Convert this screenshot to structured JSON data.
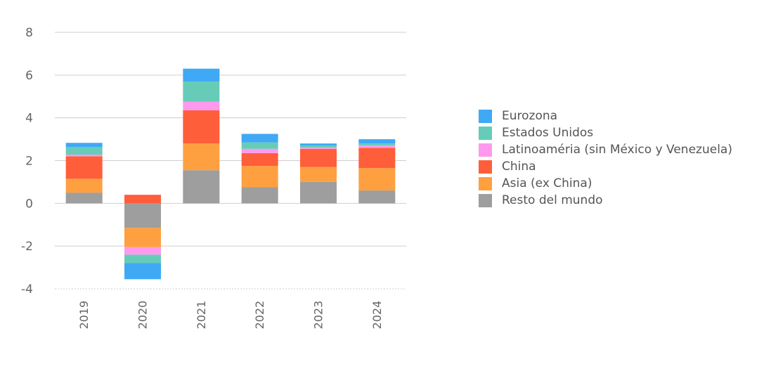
{
  "chart_data": {
    "type": "bar",
    "stacked": true,
    "categories": [
      "2019",
      "2020",
      "2021",
      "2022",
      "2023",
      "2024"
    ],
    "ylim": [
      -4,
      8
    ],
    "yticks": [
      -4,
      -2,
      0,
      2,
      4,
      6,
      8
    ],
    "grid": true,
    "legend_position": "right",
    "series": [
      {
        "name": "Resto del mundo",
        "color": "#9e9e9e",
        "values": [
          0.5,
          -1.15,
          1.55,
          0.75,
          1.0,
          0.6
        ]
      },
      {
        "name": "Asia (ex China)",
        "color": "#ffa040",
        "values": [
          0.65,
          -0.9,
          1.25,
          1.0,
          0.7,
          1.05
        ]
      },
      {
        "name": "China",
        "color": "#ff5e3a",
        "values": [
          1.05,
          0.4,
          1.55,
          0.6,
          0.85,
          0.95
        ]
      },
      {
        "name": "Latinoaméria (sin México y Venezuela)",
        "color": "#ff99ee",
        "values": [
          0.08,
          -0.35,
          0.4,
          0.2,
          0.05,
          0.1
        ]
      },
      {
        "name": "Estados Unidos",
        "color": "#66ccb8",
        "values": [
          0.35,
          -0.4,
          0.95,
          0.3,
          0.1,
          0.1
        ]
      },
      {
        "name": "Eurozona",
        "color": "#3fa9f5",
        "values": [
          0.2,
          -0.75,
          0.6,
          0.4,
          0.1,
          0.2
        ]
      }
    ],
    "legend_order": [
      "Eurozona",
      "Estados Unidos",
      "Latinoaméria (sin México y Venezuela)",
      "China",
      "Asia (ex China)",
      "Resto del mundo"
    ]
  }
}
